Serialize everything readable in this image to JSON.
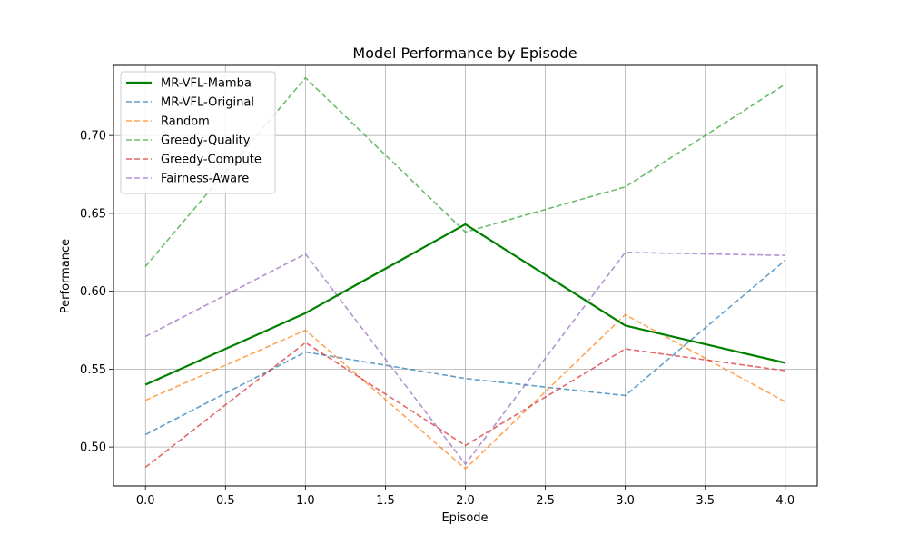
{
  "chart_data": {
    "type": "line",
    "title": "Model Performance by Episode",
    "xlabel": "Episode",
    "ylabel": "Performance",
    "xlim": [
      -0.2,
      4.2
    ],
    "ylim": [
      0.475,
      0.745
    ],
    "xticks": [
      0.0,
      0.5,
      1.0,
      1.5,
      2.0,
      2.5,
      3.0,
      3.5,
      4.0
    ],
    "xtick_labels": [
      "0.0",
      "0.5",
      "1.0",
      "1.5",
      "2.0",
      "2.5",
      "3.0",
      "3.5",
      "4.0"
    ],
    "yticks": [
      0.5,
      0.55,
      0.6,
      0.65,
      0.7
    ],
    "ytick_labels": [
      "0.50",
      "0.55",
      "0.60",
      "0.65",
      "0.70"
    ],
    "grid": true,
    "legend_position": "top-left",
    "x": [
      0,
      1,
      2,
      3,
      4
    ],
    "series": [
      {
        "name": "MR-VFL-Mamba",
        "color": "#008000",
        "style": "solid",
        "values": [
          0.54,
          0.586,
          0.643,
          0.578,
          0.554
        ]
      },
      {
        "name": "MR-VFL-Original",
        "color": "#1f77b4",
        "style": "dashed",
        "values": [
          0.508,
          0.561,
          0.544,
          0.533,
          0.62
        ]
      },
      {
        "name": "Random",
        "color": "#ff7f0e",
        "style": "dashed",
        "values": [
          0.53,
          0.575,
          0.486,
          0.585,
          0.529
        ]
      },
      {
        "name": "Greedy-Quality",
        "color": "#2ca02c",
        "style": "dashed",
        "values": [
          0.616,
          0.737,
          0.638,
          0.667,
          0.733
        ]
      },
      {
        "name": "Greedy-Compute",
        "color": "#d62728",
        "style": "dashed",
        "values": [
          0.487,
          0.567,
          0.501,
          0.563,
          0.549
        ]
      },
      {
        "name": "Fairness-Aware",
        "color": "#9467bd",
        "style": "dashed",
        "values": [
          0.571,
          0.624,
          0.489,
          0.625,
          0.623
        ]
      }
    ]
  }
}
